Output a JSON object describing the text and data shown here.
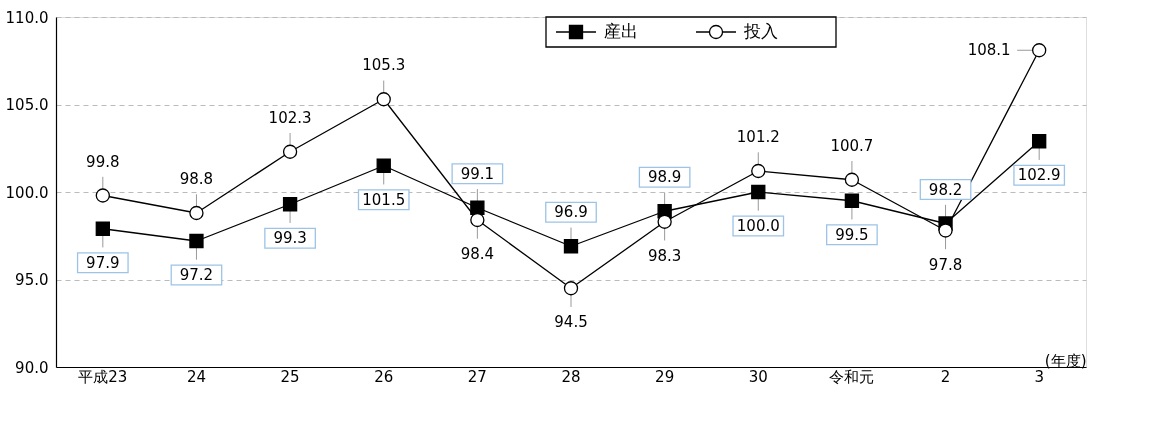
{
  "chart_data": {
    "type": "line",
    "categories": [
      "平成23",
      "24",
      "25",
      "26",
      "27",
      "28",
      "29",
      "30",
      "令和元",
      "2",
      "3"
    ],
    "xlabel": "(年度)",
    "series": [
      {
        "name": "産出",
        "color": "#000000",
        "marker": "square",
        "values": [
          97.9,
          97.2,
          99.3,
          101.5,
          99.1,
          96.9,
          98.9,
          100.0,
          99.5,
          98.2,
          102.9
        ],
        "value_labels": [
          "97.9",
          "97.2",
          "99.3",
          "101.5",
          "99.1",
          "96.9",
          "98.9",
          "100.0",
          "99.5",
          "98.2",
          "102.9"
        ]
      },
      {
        "name": "投入",
        "color": "#000000",
        "marker": "circle",
        "values": [
          99.8,
          98.8,
          102.3,
          105.3,
          98.4,
          94.5,
          98.3,
          101.2,
          100.7,
          97.8,
          108.1
        ],
        "value_labels": [
          "99.8",
          "98.8",
          "102.3",
          "105.3",
          "98.4",
          "94.5",
          "98.3",
          "101.2",
          "100.7",
          "97.8",
          "108.1"
        ]
      }
    ],
    "ylim": [
      90,
      110
    ],
    "yticks": [
      {
        "value": 90,
        "label": "90.0"
      },
      {
        "value": 95,
        "label": "95.0"
      },
      {
        "value": 100,
        "label": "100.0"
      },
      {
        "value": 105,
        "label": "105.0"
      },
      {
        "value": 110,
        "label": "110.0"
      }
    ],
    "grid": "y",
    "legend": "top",
    "line_style": "solid"
  }
}
